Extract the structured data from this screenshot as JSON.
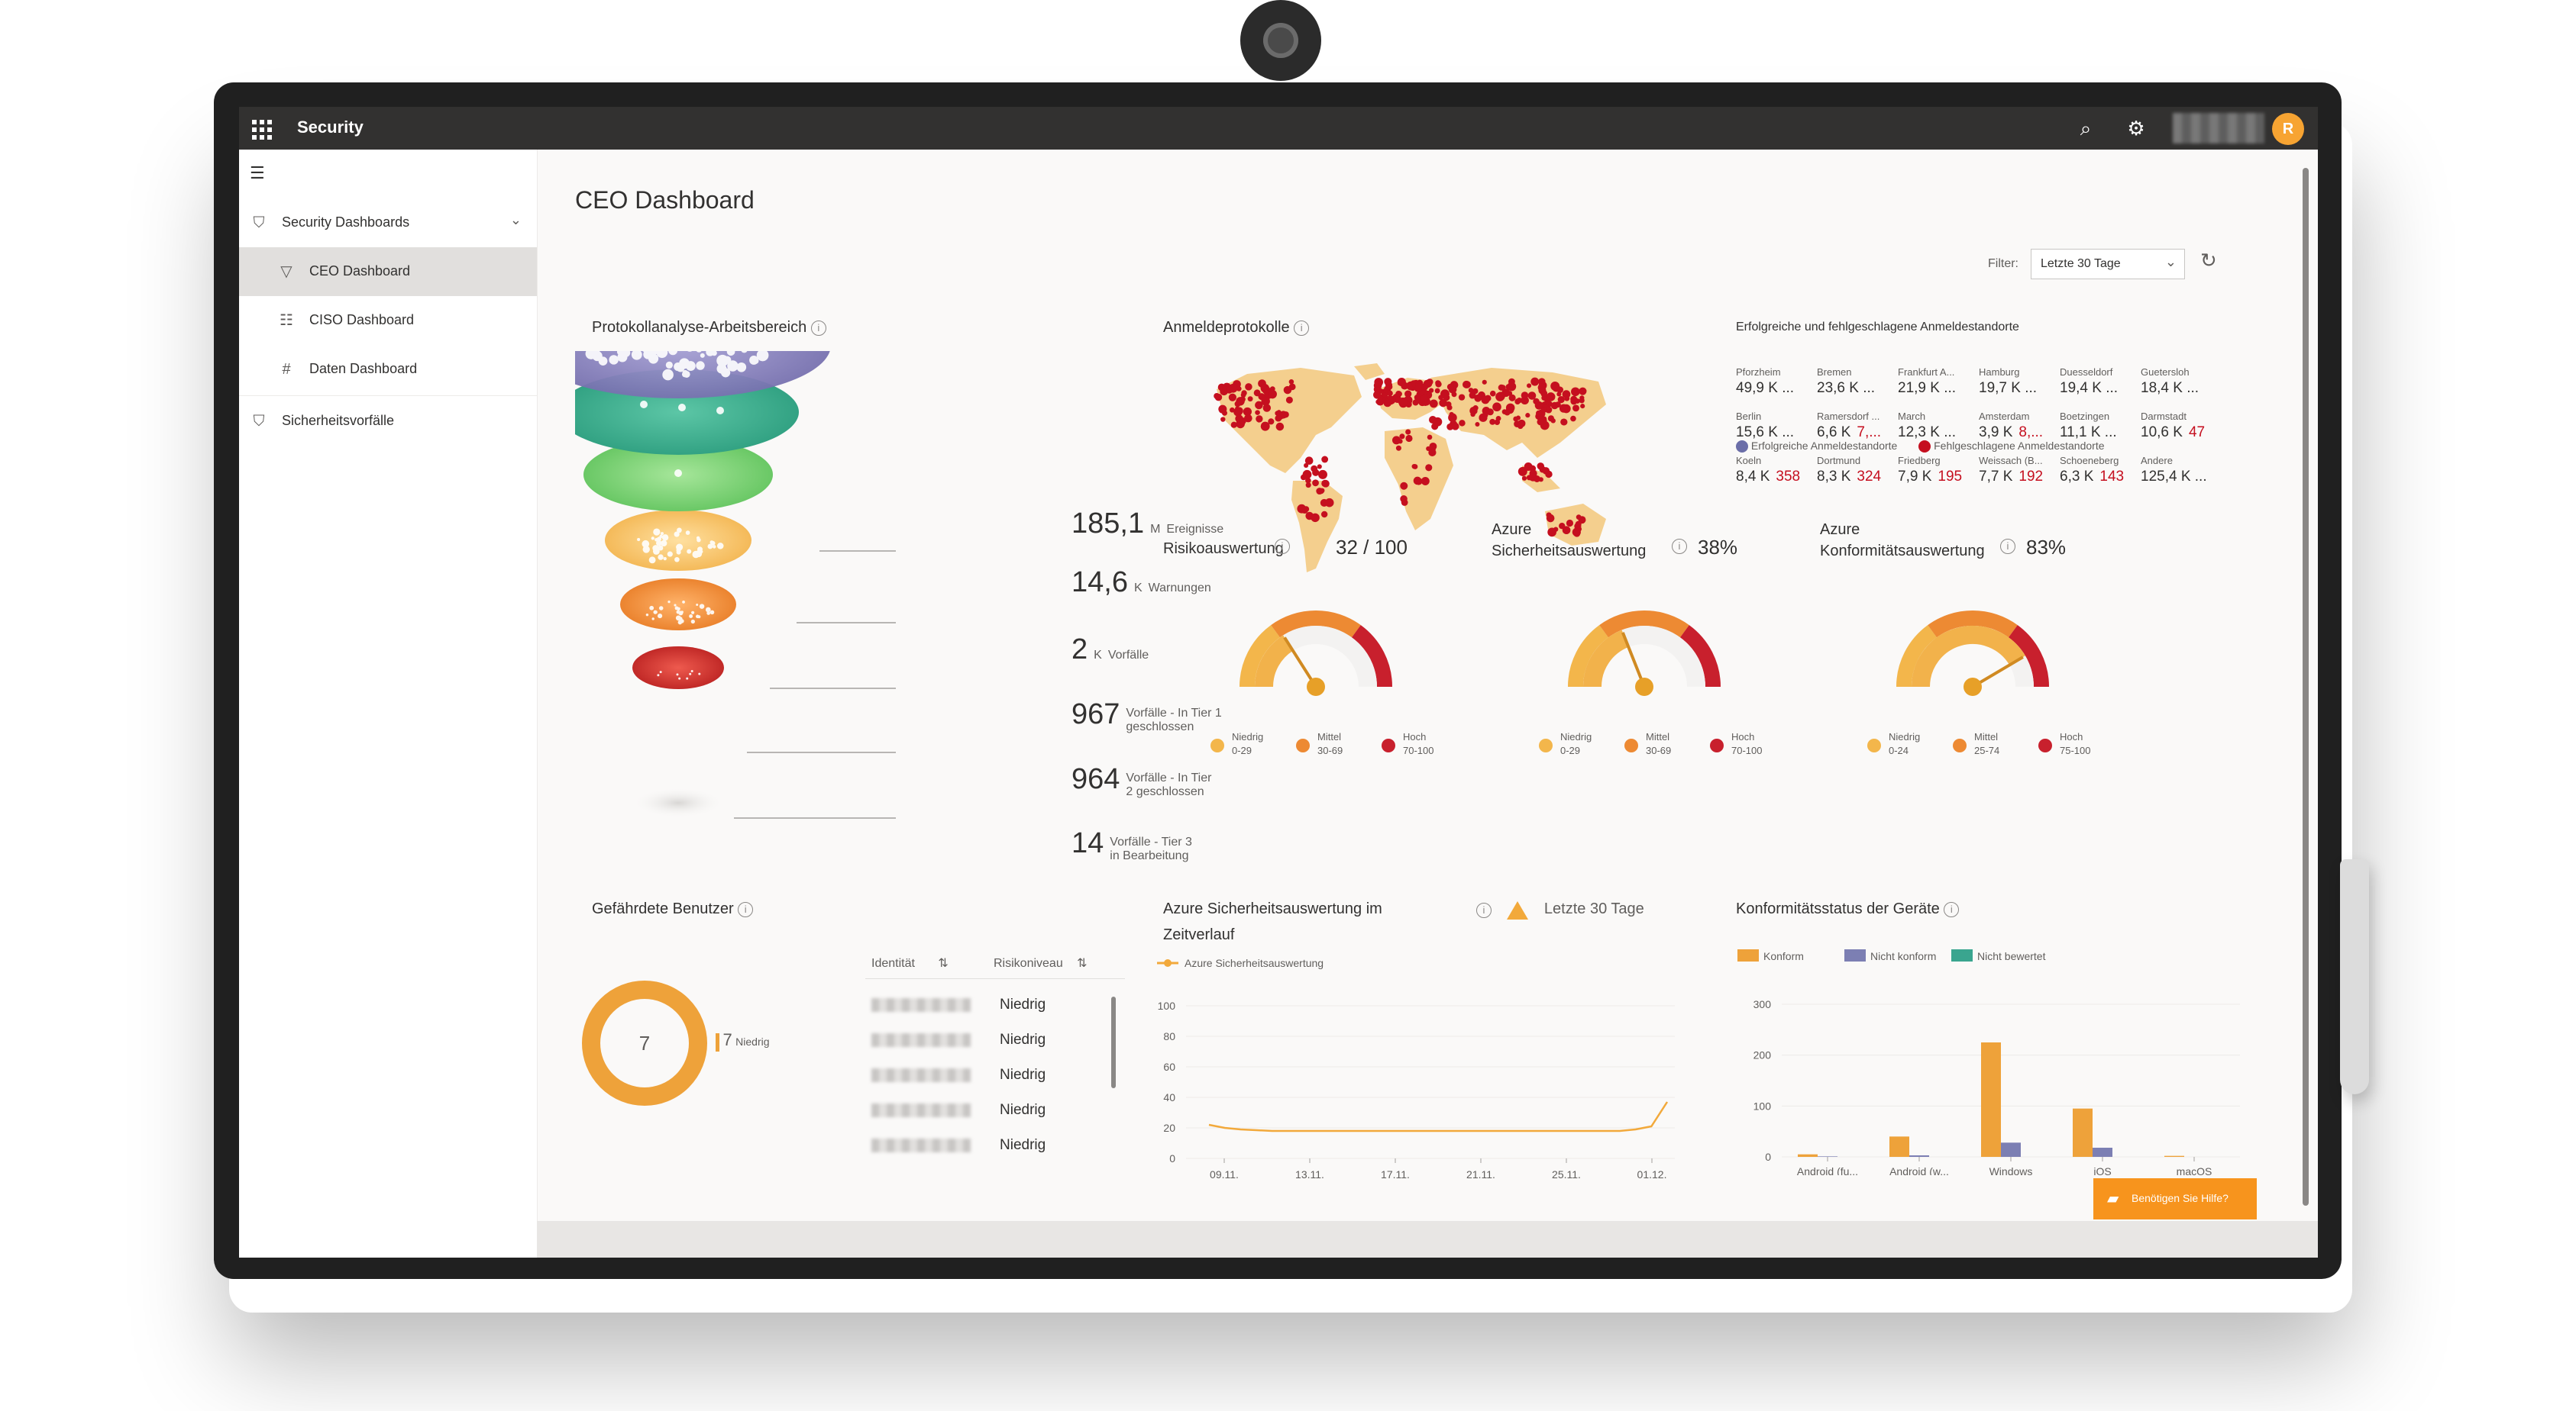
{
  "app": {
    "title": "Security"
  },
  "sidebar": {
    "items": [
      {
        "label": "Security Dashboards"
      },
      {
        "label": "CEO Dashboard"
      },
      {
        "label": "CISO Dashboard"
      },
      {
        "label": "Daten Dashboard"
      },
      {
        "label": "Sicherheitsvorfälle"
      }
    ]
  },
  "page": {
    "title": "CEO Dashboard"
  },
  "filter": {
    "label": "Filter:",
    "value": "Letzte 30 Tage"
  },
  "funnel": {
    "title": "Protokollanalyse-Arbeitsbereich",
    "levels": [
      {
        "value": "185,1",
        "unit": "M",
        "label": "Ereignisse",
        "label2": ""
      },
      {
        "value": "14,6",
        "unit": "K",
        "label": "Warnungen",
        "label2": ""
      },
      {
        "value": "2",
        "unit": "K",
        "label": "Vorfälle",
        "label2": ""
      },
      {
        "value": "967",
        "unit": "",
        "label": "Vorfälle - In Tier 1",
        "label2": "geschlossen"
      },
      {
        "value": "964",
        "unit": "",
        "label": "Vorfälle - In Tier",
        "label2": "2 geschlossen"
      },
      {
        "value": "14",
        "unit": "",
        "label": "Vorfälle - Tier 3",
        "label2": "in Bearbeitung"
      }
    ]
  },
  "signin_logs": {
    "title": "Anmeldeprotokolle"
  },
  "locations": {
    "title": "Erfolgreiche und fehlgeschlagene Anmeldestandorte",
    "rows": [
      [
        {
          "city": "Pforzheim",
          "val": "49,9 K ...",
          "fail": ""
        },
        {
          "city": "Bremen",
          "val": "23,6 K ...",
          "fail": ""
        },
        {
          "city": "Frankfurt A...",
          "val": "21,9 K ...",
          "fail": ""
        },
        {
          "city": "Hamburg",
          "val": "19,7 K ...",
          "fail": ""
        },
        {
          "city": "Duesseldorf",
          "val": "19,4 K ...",
          "fail": ""
        },
        {
          "city": "Guetersloh",
          "val": "18,4 K ...",
          "fail": ""
        }
      ],
      [
        {
          "city": "Berlin",
          "val": "15,6 K ...",
          "fail": ""
        },
        {
          "city": "Ramersdorf ...",
          "val": "6,6 K",
          "fail": "7,..."
        },
        {
          "city": "March",
          "val": "12,3 K ...",
          "fail": ""
        },
        {
          "city": "Amsterdam",
          "val": "3,9 K",
          "fail": "8,..."
        },
        {
          "city": "Boetzingen",
          "val": "11,1 K ...",
          "fail": ""
        },
        {
          "city": "Darmstadt",
          "val": "10,6 K",
          "fail": "47"
        }
      ],
      [
        {
          "city": "Koeln",
          "val": "8,4 K",
          "fail": "358"
        },
        {
          "city": "Dortmund",
          "val": "8,3 K",
          "fail": "324"
        },
        {
          "city": "Friedberg",
          "val": "7,9 K",
          "fail": "195"
        },
        {
          "city": "Weissach (B...",
          "val": "7,7 K",
          "fail": "192"
        },
        {
          "city": "Schoeneberg",
          "val": "6,3 K",
          "fail": "143"
        },
        {
          "city": "Andere",
          "val": "125,4 K ...",
          "fail": ""
        }
      ]
    ],
    "legend_success": "Erfolgreiche Anmeldestandorte",
    "legend_fail": "Fehlgeschlagene Anmeldestandorte",
    "color_success": "#6b6ea8",
    "color_fail": "#c50f1f"
  },
  "gauges": [
    {
      "title": "Risikoauswertung",
      "title2": "",
      "value": "32 / 100",
      "level": 0.32,
      "legend": [
        {
          "name": "Niedrig",
          "range": "0-29"
        },
        {
          "name": "Mittel",
          "range": "30-69"
        },
        {
          "name": "Hoch",
          "range": "70-100"
        }
      ]
    },
    {
      "title": "Azure",
      "title2": "Sicherheitsauswertung",
      "value": "38%",
      "level": 0.38,
      "legend": [
        {
          "name": "Niedrig",
          "range": "0-29"
        },
        {
          "name": "Mittel",
          "range": "30-69"
        },
        {
          "name": "Hoch",
          "range": "70-100"
        }
      ]
    },
    {
      "title": "Azure",
      "title2": "Konformitätsauswertung",
      "value": "83%",
      "level": 0.83,
      "legend": [
        {
          "name": "Niedrig",
          "range": "0-24"
        },
        {
          "name": "Mittel",
          "range": "25-74"
        },
        {
          "name": "Hoch",
          "range": "75-100"
        }
      ]
    }
  ],
  "users": {
    "title": "Gefährdete Benutzer",
    "donut_value": "7",
    "legend_value": "7",
    "legend_label": "Niedrig",
    "col_identity": "Identität",
    "col_risk": "Risikoniveau",
    "rows": [
      "Niedrig",
      "Niedrig",
      "Niedrig",
      "Niedrig",
      "Niedrig"
    ]
  },
  "chart_data": [
    {
      "type": "line",
      "title": "Azure Sicherheitsauswertung im Zeitverlauf",
      "badge": "Letzte 30 Tage",
      "series": [
        {
          "name": "Azure Sicherheitsauswertung",
          "values": [
            22,
            20,
            19,
            18.5,
            18,
            18,
            18,
            18,
            18,
            18,
            18,
            18,
            18,
            18,
            18,
            18,
            18,
            18,
            18,
            18,
            18,
            18,
            18,
            18,
            18,
            18,
            18,
            19,
            21,
            37
          ]
        }
      ],
      "x_ticks": [
        "09.11.",
        "13.11.",
        "17.11.",
        "21.11.",
        "25.11.",
        "01.12."
      ],
      "y_ticks": [
        "100",
        "80",
        "60",
        "40",
        "20",
        "0"
      ],
      "ylim": [
        0,
        100
      ],
      "color": "#f2a93b"
    },
    {
      "type": "bar",
      "title": "Konformitätsstatus der Geräte",
      "categories": [
        "Android (fu...",
        "Android (w...",
        "Windows",
        "iOS",
        "macOS"
      ],
      "series": [
        {
          "name": "Konform",
          "values": [
            5,
            40,
            225,
            95,
            2
          ],
          "color": "#eea23a"
        },
        {
          "name": "Nicht konform",
          "values": [
            1,
            3,
            28,
            18,
            0
          ],
          "color": "#7c7fb3"
        },
        {
          "name": "Nicht bewertet",
          "values": [
            0,
            0,
            0,
            0,
            0
          ],
          "color": "#3aa58f"
        }
      ],
      "y_ticks": [
        "300",
        "200",
        "100",
        "0"
      ],
      "ylim": [
        0,
        300
      ]
    }
  ],
  "help_button": {
    "label": "Benötigen Sie Hilfe?"
  }
}
